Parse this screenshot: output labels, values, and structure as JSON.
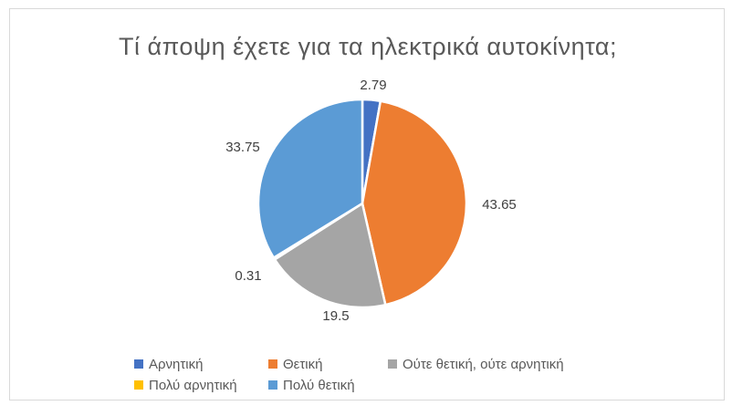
{
  "chart_data": {
    "type": "pie",
    "title": "Τί άποψη έχετε για τα ηλεκτρικά αυτοκίνητα;",
    "categories": [
      "Αρνητική",
      "Θετική",
      "Ούτε θετική, ούτε αρνητική",
      "Πολύ αρνητική",
      "Πολύ θετική"
    ],
    "values": [
      2.79,
      43.65,
      19.5,
      0.31,
      33.75
    ],
    "data_labels": [
      "2.79",
      "43.65",
      "19.5",
      "0.31",
      "33.75"
    ],
    "colors": [
      "#4472C4",
      "#ED7D31",
      "#A5A5A5",
      "#FFC000",
      "#5B9BD5"
    ],
    "legend_position": "bottom"
  }
}
